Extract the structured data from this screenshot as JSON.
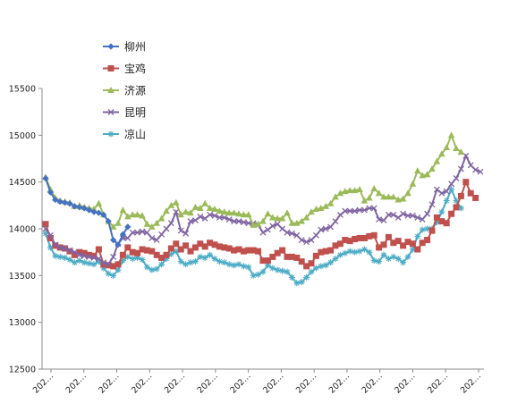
{
  "chart_data": {
    "type": "line",
    "yticks": [
      "15500",
      "15000",
      "14500",
      "14000",
      "13500",
      "13000",
      "12500"
    ],
    "ylim": [
      12500,
      15500
    ],
    "xtick_labels": [
      "202…",
      "202…",
      "202…",
      "202…",
      "202…",
      "202…",
      "202…",
      "202…",
      "202…",
      "202…",
      "202…",
      "202…",
      "202…",
      "202…"
    ],
    "grid": false,
    "legend_position": "top-left",
    "series": [
      {
        "name": "柳州",
        "color": "#4472C4",
        "marker": "diamond",
        "x_index": [
          0,
          1,
          2,
          3,
          4,
          5,
          6,
          7,
          8,
          9,
          10,
          11,
          12,
          13,
          14,
          15,
          16,
          17
        ],
        "values": [
          14540,
          14390,
          14310,
          14290,
          14280,
          14270,
          14240,
          14230,
          14220,
          14200,
          14180,
          14170,
          14150,
          14080,
          13880,
          13830,
          13940,
          14020
        ]
      },
      {
        "name": "宝鸡",
        "color": "#C0504D",
        "marker": "square",
        "values": [
          14050,
          13900,
          13820,
          13800,
          13790,
          13760,
          13720,
          13750,
          13740,
          13720,
          13710,
          13780,
          13620,
          13610,
          13600,
          13620,
          13720,
          13800,
          13750,
          13740,
          13780,
          13770,
          13760,
          13720,
          13690,
          13720,
          13790,
          13840,
          13780,
          13820,
          13760,
          13800,
          13840,
          13810,
          13850,
          13830,
          13810,
          13800,
          13790,
          13770,
          13780,
          13760,
          13770,
          13770,
          13760,
          13660,
          13660,
          13700,
          13740,
          13770,
          13700,
          13700,
          13690,
          13650,
          13600,
          13630,
          13710,
          13750,
          13760,
          13770,
          13820,
          13840,
          13880,
          13870,
          13890,
          13900,
          13900,
          13920,
          13930,
          13800,
          13830,
          13910,
          13850,
          13870,
          13820,
          13860,
          13840,
          13780,
          13850,
          13880,
          13980,
          14120,
          14080,
          14060,
          14160,
          14230,
          14350,
          14500,
          14380,
          14330
        ]
      },
      {
        "name": "济源",
        "color": "#9BBB59",
        "marker": "triangle",
        "values": [
          14550,
          14420,
          14330,
          14300,
          14290,
          14280,
          14240,
          14250,
          14230,
          14220,
          14210,
          14270,
          14150,
          14080,
          14020,
          14060,
          14200,
          14130,
          14150,
          14150,
          14140,
          14050,
          14020,
          14060,
          14110,
          14190,
          14250,
          14280,
          14150,
          14180,
          14170,
          14230,
          14220,
          14270,
          14220,
          14210,
          14190,
          14180,
          14170,
          14170,
          14160,
          14150,
          14150,
          14040,
          14050,
          14080,
          14160,
          14120,
          14110,
          14110,
          14170,
          14060,
          14060,
          14080,
          14120,
          14180,
          14210,
          14220,
          14240,
          14270,
          14340,
          14380,
          14400,
          14410,
          14410,
          14420,
          14300,
          14330,
          14430,
          14380,
          14340,
          14340,
          14340,
          14310,
          14320,
          14380,
          14480,
          14620,
          14570,
          14580,
          14640,
          14720,
          14800,
          14870,
          15000,
          14860,
          14820
        ]
      },
      {
        "name": "昆明",
        "color": "#8064A2",
        "marker": "x",
        "values": [
          14000,
          13930,
          13830,
          13800,
          13790,
          13770,
          13750,
          13720,
          13710,
          13700,
          13690,
          13680,
          13640,
          13620,
          13700,
          13840,
          13900,
          13900,
          13960,
          13960,
          13970,
          13960,
          13900,
          13880,
          13940,
          14000,
          14060,
          14180,
          13980,
          13950,
          14080,
          14090,
          14130,
          14110,
          14150,
          14140,
          14120,
          14120,
          14100,
          14080,
          14080,
          14070,
          14060,
          14060,
          14040,
          13960,
          13990,
          14030,
          14050,
          14000,
          13960,
          13950,
          13930,
          13880,
          13860,
          13880,
          13930,
          13990,
          14000,
          14020,
          14080,
          14150,
          14190,
          14190,
          14190,
          14200,
          14200,
          14220,
          14220,
          14100,
          14090,
          14150,
          14150,
          14120,
          14160,
          14140,
          14140,
          14120,
          14100,
          14160,
          14260,
          14420,
          14380,
          14400,
          14480,
          14540,
          14640,
          14780,
          14680,
          14630,
          14610
        ]
      },
      {
        "name": "凉山",
        "color": "#4BACC6",
        "marker": "star",
        "values": [
          13950,
          13800,
          13710,
          13700,
          13690,
          13670,
          13640,
          13660,
          13640,
          13630,
          13620,
          13650,
          13580,
          13520,
          13500,
          13560,
          13660,
          13700,
          13680,
          13690,
          13670,
          13590,
          13560,
          13570,
          13620,
          13680,
          13730,
          13760,
          13650,
          13620,
          13640,
          13650,
          13700,
          13690,
          13720,
          13680,
          13650,
          13640,
          13620,
          13610,
          13620,
          13600,
          13590,
          13500,
          13510,
          13540,
          13610,
          13580,
          13560,
          13550,
          13540,
          13480,
          13420,
          13430,
          13480,
          13540,
          13580,
          13600,
          13610,
          13640,
          13680,
          13720,
          13740,
          13760,
          13750,
          13760,
          13780,
          13750,
          13660,
          13650,
          13720,
          13680,
          13700,
          13680,
          13640,
          13700,
          13780,
          13920,
          13990,
          14000,
          14000,
          14070,
          14180,
          14300,
          14420,
          14300,
          14220
        ]
      }
    ]
  }
}
